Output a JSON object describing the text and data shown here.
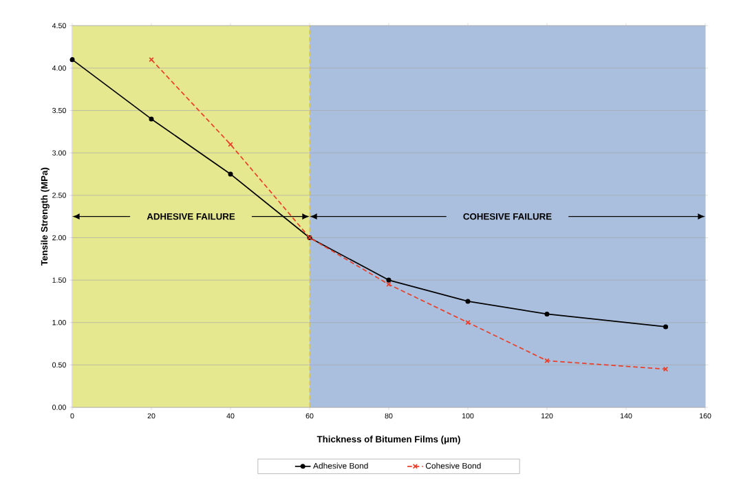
{
  "chart_data": {
    "type": "line",
    "xlabel": "Thickness of Bitumen Films (μm)",
    "ylabel": "Tensile Strength (MPa)",
    "xlim": [
      0,
      160
    ],
    "xticks": [
      0,
      20,
      40,
      60,
      80,
      100,
      120,
      140,
      160
    ],
    "ylim": [
      0,
      4.5
    ],
    "yticks": [
      {
        "value": 0,
        "label": "0.00"
      },
      {
        "value": 0.5,
        "label": "0.50"
      },
      {
        "value": 1,
        "label": "1.00"
      },
      {
        "value": 1.5,
        "label": "1.50"
      },
      {
        "value": 2,
        "label": "2.00"
      },
      {
        "value": 2.5,
        "label": "2.50"
      },
      {
        "value": 3,
        "label": "3.00"
      },
      {
        "value": 3.5,
        "label": "3.50"
      },
      {
        "value": 4,
        "label": "4.00"
      },
      {
        "value": 4.5,
        "label": "4.50"
      }
    ],
    "grid": "y",
    "legend": "bottom",
    "bands": [
      {
        "axis": "x",
        "from": 0,
        "to": 60,
        "label": "ADHESIVE FAILURE",
        "color": "#e6e88f"
      },
      {
        "axis": "x",
        "from": 60,
        "to": 160,
        "label": "COHESIVE FAILURE",
        "color": "#a9bfdd"
      }
    ],
    "ref_lines": [
      {
        "axis": "x",
        "value": 60,
        "color": "#f2c230",
        "line_style": "dashed"
      }
    ],
    "series": [
      {
        "name": "Adhesive Bond",
        "color": "#000000",
        "marker": "circle",
        "line_style": "solid",
        "x": [
          0,
          20,
          40,
          60,
          80,
          100,
          120,
          150
        ],
        "values": [
          4.1,
          3.4,
          2.75,
          2.0,
          1.5,
          1.25,
          1.1,
          0.95
        ]
      },
      {
        "name": "Cohesive Bond",
        "color": "#e8402a",
        "marker": "cross",
        "line_style": "dashed",
        "x": [
          20,
          40,
          60,
          80,
          100,
          120,
          150
        ],
        "values": [
          4.1,
          3.1,
          2.0,
          1.45,
          1.0,
          0.55,
          0.45
        ]
      }
    ]
  }
}
